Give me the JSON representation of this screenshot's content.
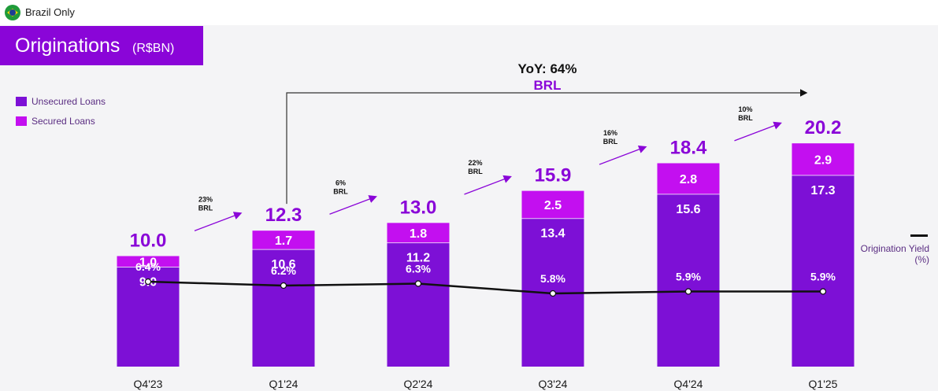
{
  "header": {
    "scope_label": "Brazil Only",
    "flag_icon": "brazil-flag-icon"
  },
  "title": {
    "main": "Originations",
    "unit": "(R$BN)"
  },
  "legend": {
    "items": [
      {
        "label": "Unsecured Loans",
        "color": "#7d10d6"
      },
      {
        "label": "Secured Loans",
        "color": "#c30ff0"
      }
    ],
    "yield_label": "Origination Yield (%)"
  },
  "yoy": {
    "label": "YoY: 64%",
    "currency": "BRL"
  },
  "colors": {
    "unsecured": "#7d10d6",
    "secured": "#c30ff0",
    "total_label": "#8a05d8",
    "growth_arrow": "#8a05d8",
    "yield_line": "#111111",
    "background": "#f4f4f6"
  },
  "chart_data": {
    "type": "bar",
    "stacked": true,
    "categories": [
      "Q4'23",
      "Q1'24",
      "Q2'24",
      "Q3'24",
      "Q4'24",
      "Q1'25"
    ],
    "series": [
      {
        "name": "Unsecured Loans",
        "values": [
          9.0,
          10.6,
          11.2,
          13.4,
          15.6,
          17.3
        ],
        "labels": [
          "9.0",
          "10.6",
          "11.2",
          "13.4",
          "15.6",
          "17.3"
        ]
      },
      {
        "name": "Secured Loans",
        "values": [
          1.0,
          1.7,
          1.8,
          2.5,
          2.8,
          2.9
        ],
        "labels": [
          "1.0",
          "1.7",
          "1.8",
          "2.5",
          "2.8",
          "2.9"
        ]
      }
    ],
    "totals": [
      "10.0",
      "12.3",
      "13.0",
      "15.9",
      "18.4",
      "20.2"
    ],
    "origination_yield": {
      "name": "Origination Yield (%)",
      "values": [
        6.4,
        6.2,
        6.3,
        5.8,
        5.9,
        5.9
      ],
      "labels": [
        "6.4%",
        "6.2%",
        "6.3%",
        "5.8%",
        "5.9%",
        "5.9%"
      ]
    },
    "growth_labels": [
      {
        "pct": "23%",
        "cur": "BRL"
      },
      {
        "pct": "6%",
        "cur": "BRL"
      },
      {
        "pct": "22%",
        "cur": "BRL"
      },
      {
        "pct": "16%",
        "cur": "BRL"
      },
      {
        "pct": "10%",
        "cur": "BRL"
      }
    ]
  }
}
